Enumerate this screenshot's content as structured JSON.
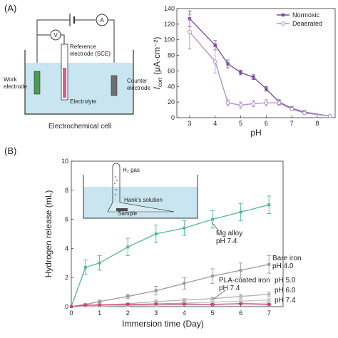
{
  "panel_labels": [
    "(A)",
    "(B)"
  ],
  "cell_diagram": {
    "caption": "Electrochemical cell",
    "voltmeter": "V",
    "ammeter": "A",
    "reference_label_1": "Reference",
    "reference_label_2": "electrode (SCE)",
    "work_label_1": "Work",
    "work_label_2": "electrode",
    "counter_label_1": "Counter",
    "counter_label_2": "electrode",
    "electrolyte": "Electrolyte",
    "colors": {
      "liquid": "#c9e6f0",
      "work": "#4c9a55",
      "reference": "#e05d8a",
      "counter": "#6f6f6f"
    }
  },
  "tube_diagram": {
    "gas_label": "H₂ gas",
    "solution_label": "Hank's solution",
    "sample_label": "Sample",
    "colors": {
      "liquid": "#c9e6f0"
    }
  },
  "chart_data": [
    {
      "type": "line",
      "ylabel": "I_corr (μA·cm⁻²)",
      "ylabel_parts": {
        "main": "I",
        "sub": "corr",
        "units": " (μA·cm⁻²)"
      },
      "xlabel": "pH",
      "xlim": [
        2.5,
        8.7
      ],
      "ylim": [
        0,
        140
      ],
      "x_ticks": [
        3,
        4,
        5,
        6,
        7,
        8
      ],
      "y_ticks": [
        0,
        20,
        40,
        60,
        80,
        100,
        120,
        140
      ],
      "legend_position": "top-right",
      "series": [
        {
          "name": "Normoxic",
          "color": "#7b4fa3",
          "marker": "filled-square",
          "x": [
            3.0,
            4.0,
            4.5,
            5.0,
            5.5,
            6.0,
            6.5,
            7.0,
            7.5,
            8.5
          ],
          "y": [
            127,
            93,
            69,
            58,
            52,
            37,
            20,
            12,
            7,
            2
          ],
          "err": [
            10,
            6,
            5,
            3,
            3,
            3,
            3,
            2,
            2,
            1
          ]
        },
        {
          "name": "Deaerated",
          "color": "#b08fd0",
          "marker": "open-circle",
          "x": [
            3.0,
            4.0,
            4.5,
            5.0,
            5.5,
            6.0,
            6.5,
            7.0,
            7.5,
            8.5
          ],
          "y": [
            110,
            72,
            19,
            16,
            18,
            19,
            19,
            11,
            6,
            2
          ],
          "err": [
            22,
            15,
            4,
            4,
            4,
            4,
            3,
            2,
            2,
            1
          ]
        }
      ]
    },
    {
      "type": "line",
      "xlabel": "Immersion time (Day)",
      "ylabel": "Hydrogen release (mL)",
      "xlim": [
        0,
        7.5
      ],
      "ylim": [
        0,
        10
      ],
      "x_ticks": [
        0,
        1,
        2,
        3,
        4,
        5,
        6,
        7
      ],
      "y_ticks": [
        0,
        2,
        4,
        6,
        8,
        10
      ],
      "series": [
        {
          "name": "Mg alloy pH 7.4",
          "label_lines": [
            "Mg alloy",
            "pH 7.4"
          ],
          "color": "#4fb8a0",
          "x": [
            0,
            0.5,
            1,
            2,
            3,
            4,
            5,
            6,
            7
          ],
          "y": [
            0,
            2.7,
            3.0,
            4.1,
            5.0,
            5.4,
            6.0,
            6.5,
            7.0
          ],
          "err": [
            0,
            0.5,
            0.5,
            0.6,
            0.6,
            0.5,
            0.6,
            0.6,
            0.6
          ]
        },
        {
          "name": "Bare iron pH 4.0",
          "label_lines": [
            "Bare iron",
            "pH 4.0"
          ],
          "color": "#9a9a9a",
          "x": [
            0,
            0.5,
            1,
            2,
            3,
            4,
            5,
            6,
            7
          ],
          "y": [
            0,
            0.15,
            0.35,
            0.7,
            1.1,
            1.6,
            2.1,
            2.5,
            2.9
          ],
          "err": [
            0,
            0.05,
            0.1,
            0.15,
            0.3,
            0.4,
            0.5,
            0.5,
            0.6
          ]
        },
        {
          "name": "pH 5.0",
          "label_lines": [
            "pH 5.0"
          ],
          "color": "#b5b5b5",
          "x": [
            0,
            1,
            2,
            3,
            4,
            5,
            6,
            7
          ],
          "y": [
            0,
            0.1,
            0.2,
            0.35,
            0.45,
            0.55,
            0.7,
            0.85
          ],
          "err": [
            0,
            0.05,
            0.05,
            0.1,
            0.1,
            0.1,
            0.15,
            0.15
          ]
        },
        {
          "name": "pH 6.0",
          "label_lines": [
            "pH 6.0"
          ],
          "color": "#c4c4c4",
          "x": [
            0,
            1,
            2,
            3,
            4,
            5,
            6,
            7
          ],
          "y": [
            0,
            0.05,
            0.1,
            0.18,
            0.25,
            0.3,
            0.38,
            0.45
          ],
          "err": [
            0,
            0.03,
            0.05,
            0.05,
            0.05,
            0.08,
            0.08,
            0.1
          ]
        },
        {
          "name": "pH 7.4",
          "label_lines": [
            "pH 7.4"
          ],
          "color": "#cfcfcf",
          "x": [
            0,
            1,
            2,
            3,
            4,
            5,
            6,
            7
          ],
          "y": [
            0,
            0.03,
            0.06,
            0.1,
            0.13,
            0.16,
            0.2,
            0.25
          ],
          "err": [
            0,
            0.02,
            0.03,
            0.03,
            0.04,
            0.04,
            0.05,
            0.05
          ]
        },
        {
          "name": "PLA-coated iron pH 7.4",
          "label_lines": [
            "PLA-coated iron",
            "pH 7.4"
          ],
          "color": "#d2456e",
          "x": [
            0,
            0.5,
            1,
            2,
            3,
            4,
            5,
            6,
            7
          ],
          "y": [
            0,
            0.1,
            0.12,
            0.15,
            0.18,
            0.18,
            0.15,
            0.2,
            0.15
          ],
          "err": [
            0,
            0.02,
            0.03,
            0.03,
            0.03,
            0.03,
            0.03,
            0.03,
            0.03
          ]
        }
      ]
    }
  ]
}
